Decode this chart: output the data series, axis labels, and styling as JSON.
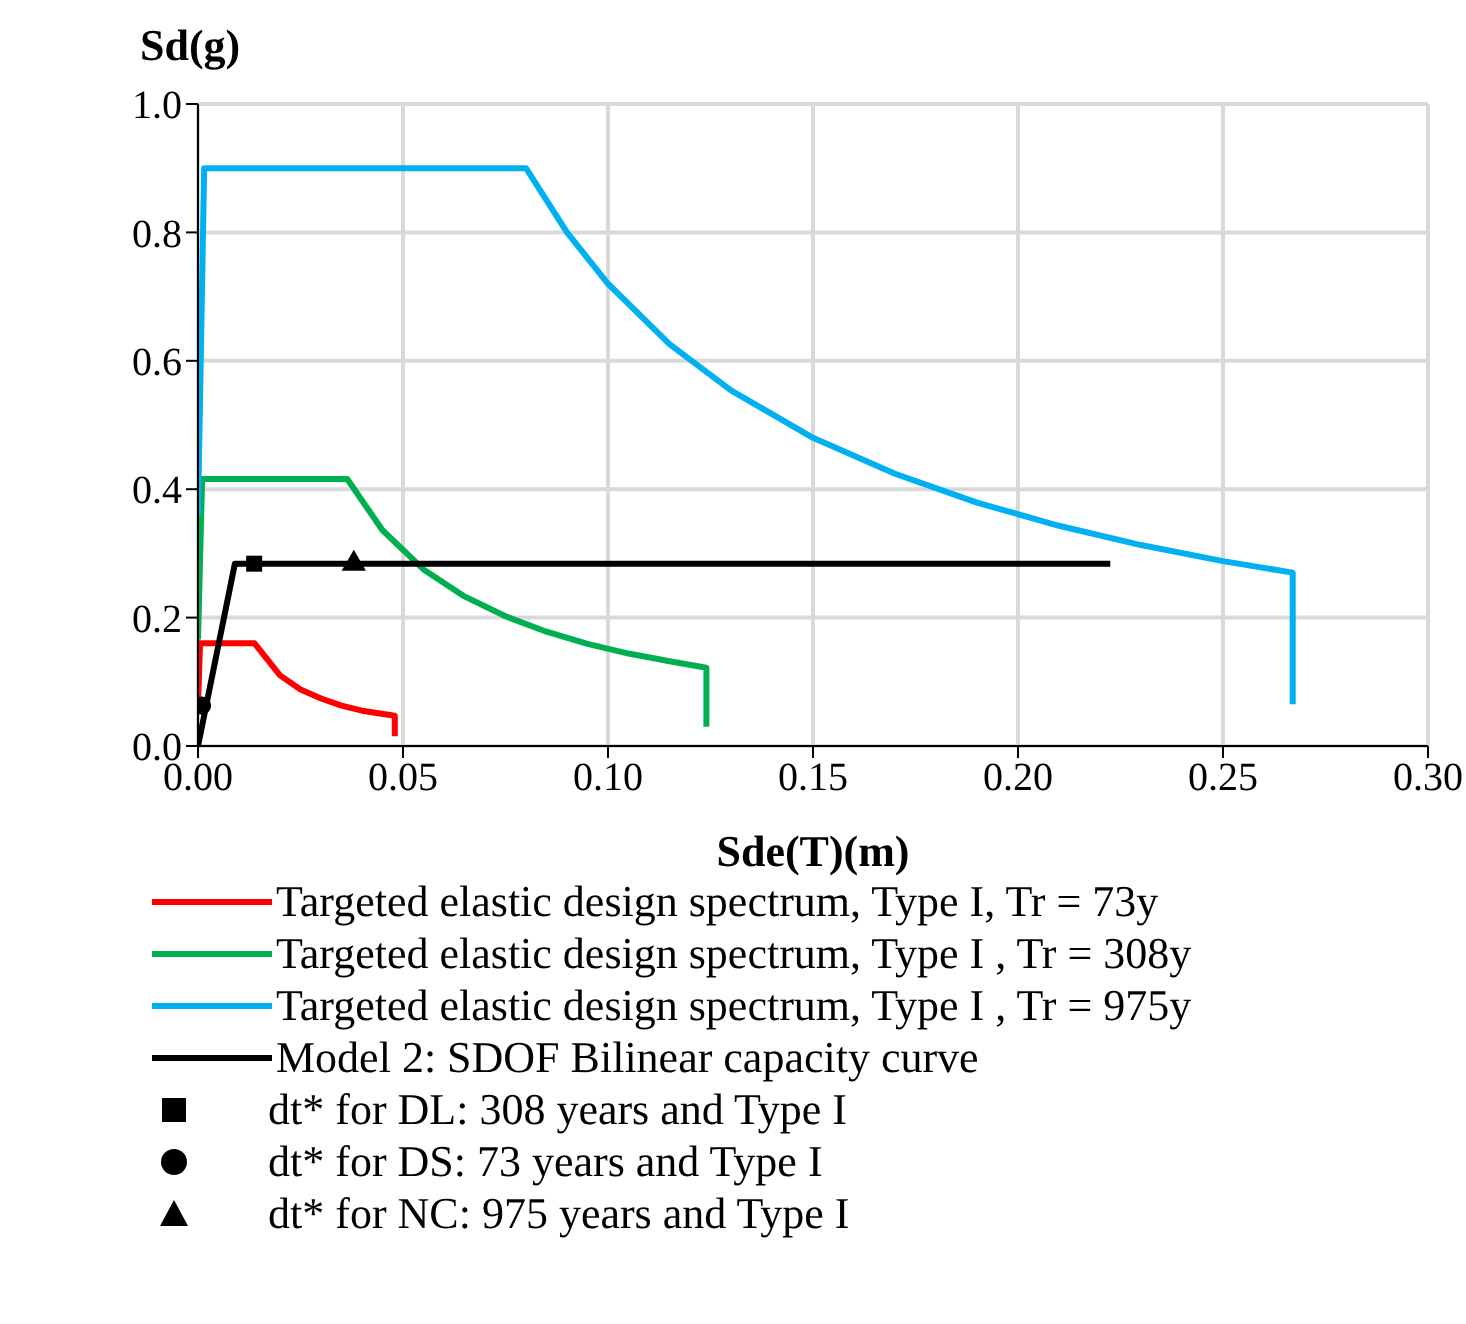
{
  "chart_data": {
    "type": "line",
    "xlabel": "Sde(T)(m)",
    "ylabel": "Sd(g)",
    "xlim": [
      0,
      0.3
    ],
    "ylim": [
      0,
      1.0
    ],
    "xticks": [
      {
        "value": 0,
        "label": "0.00"
      },
      {
        "value": 0.05,
        "label": "0.05"
      },
      {
        "value": 0.1,
        "label": "0.10"
      },
      {
        "value": 0.15,
        "label": "0.15"
      },
      {
        "value": 0.2,
        "label": "0.20"
      },
      {
        "value": 0.25,
        "label": "0.25"
      },
      {
        "value": 0.3,
        "label": "0.30"
      }
    ],
    "yticks": [
      {
        "value": 0,
        "label": "0.0"
      },
      {
        "value": 0.2,
        "label": "0.2"
      },
      {
        "value": 0.4,
        "label": "0.4"
      },
      {
        "value": 0.6,
        "label": "0.6"
      },
      {
        "value": 0.8,
        "label": "0.8"
      },
      {
        "value": 1.0,
        "label": "1.0"
      }
    ],
    "grid": true,
    "legend": "bottom",
    "marker": "none",
    "series": [
      {
        "name": "Targeted elastic design spectrum, Type I, Tr = 73y",
        "type": "line",
        "color": "#ff0000",
        "x": [
          0,
          0.0005,
          0.0138,
          0.02,
          0.025,
          0.03,
          0.035,
          0.04,
          0.048,
          0.048
        ],
        "values": [
          0.064,
          0.16,
          0.16,
          0.11,
          0.088,
          0.074,
          0.063,
          0.055,
          0.047,
          0.015
        ]
      },
      {
        "name": "Targeted elastic design spectrum, Type I  , Tr = 308y",
        "type": "line",
        "color": "#00b050",
        "x": [
          0,
          0.001,
          0.0364,
          0.045,
          0.055,
          0.065,
          0.075,
          0.085,
          0.095,
          0.105,
          0.115,
          0.124,
          0.124
        ],
        "values": [
          0.166,
          0.416,
          0.416,
          0.336,
          0.275,
          0.233,
          0.202,
          0.178,
          0.159,
          0.144,
          0.132,
          0.122,
          0.03
        ]
      },
      {
        "name": "Targeted elastic design spectrum, Type I , Tr = 975y",
        "type": "line",
        "color": "#00b0f0",
        "x": [
          0,
          0.0015,
          0.08,
          0.09,
          0.1,
          0.115,
          0.13,
          0.15,
          0.17,
          0.19,
          0.21,
          0.23,
          0.25,
          0.267,
          0.267
        ],
        "values": [
          0.36,
          0.9,
          0.9,
          0.8,
          0.72,
          0.626,
          0.554,
          0.48,
          0.424,
          0.379,
          0.343,
          0.313,
          0.288,
          0.27,
          0.065
        ]
      },
      {
        "name": "Model 2: SDOF Bilinear capacity curve",
        "type": "line",
        "color": "#000000",
        "x": [
          0,
          0.009,
          0.2225
        ],
        "values": [
          0,
          0.284,
          0.284
        ]
      },
      {
        "name": "dt* for DL: 308 years and Type I",
        "type": "scatter",
        "marker": "square",
        "color": "#000000",
        "x": [
          0.0137
        ],
        "values": [
          0.284
        ]
      },
      {
        "name": "dt* for DS: 73 years and Type I",
        "type": "scatter",
        "marker": "circle",
        "color": "#000000",
        "x": [
          0.001
        ],
        "values": [
          0.063
        ]
      },
      {
        "name": "dt* for NC: 975 years and Type I",
        "type": "scatter",
        "marker": "triangle",
        "color": "#000000",
        "x": [
          0.038
        ],
        "values": [
          0.284
        ]
      }
    ]
  }
}
